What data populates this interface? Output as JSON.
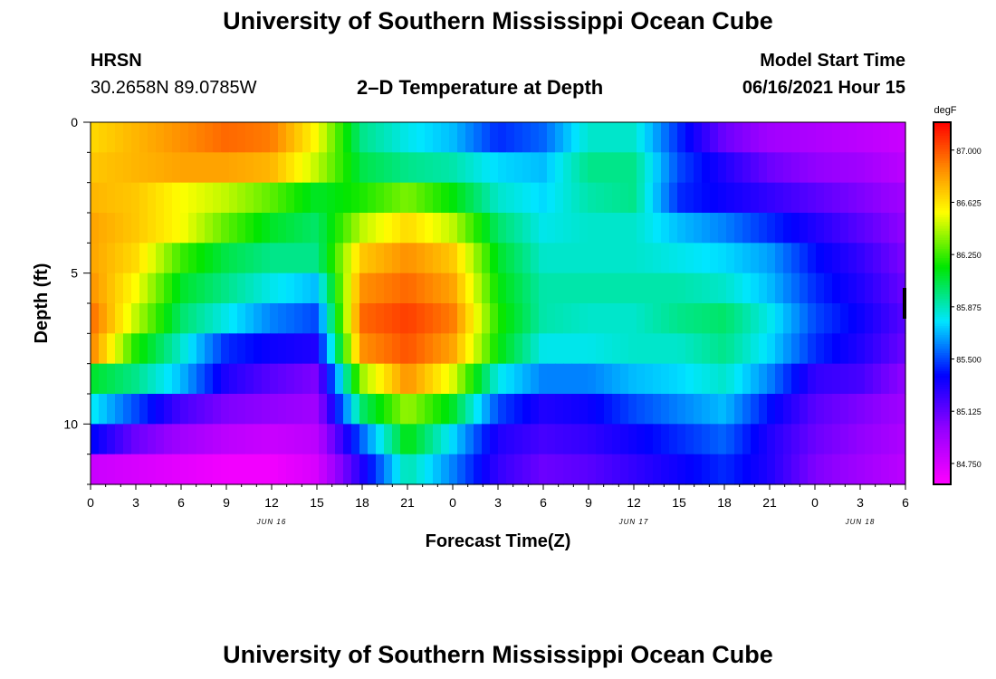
{
  "header": {
    "title": "University of Southern Mississippi Ocean Cube",
    "station": "HRSN",
    "coords": "30.2658N  89.0785W",
    "plot_title": "2–D Temperature at Depth",
    "model_label": "Model Start Time",
    "model_time": "06/16/2021 Hour 15"
  },
  "footer": {
    "title": "University of Southern Mississippi Ocean Cube"
  },
  "chart_data": {
    "type": "heatmap",
    "title": "2–D Temperature at Depth",
    "xlabel": "Forecast Time(Z)",
    "ylabel": "Depth (ft)",
    "x_tick_labels": [
      "0",
      "3",
      "6",
      "9",
      "12",
      "15",
      "18",
      "21",
      "0",
      "3",
      "6",
      "9",
      "12",
      "15",
      "18",
      "21",
      "0",
      "3",
      "6"
    ],
    "x_range_hours": [
      0,
      54
    ],
    "date_labels": [
      {
        "label": "JUN 16",
        "hour": 12
      },
      {
        "label": "JUN 17",
        "hour": 36
      },
      {
        "label": "JUN 18",
        "hour": 51
      }
    ],
    "y_ticks": [
      0,
      5,
      10
    ],
    "y_range": [
      0,
      12
    ],
    "y_inverted": true,
    "rows_depth_ft": [
      0.5,
      1.5,
      2.5,
      3.5,
      4.5,
      5.5,
      6.5,
      7.5,
      8.5,
      9.5,
      10.5,
      11.5
    ],
    "column_hours": [
      0,
      3,
      6,
      9,
      12,
      15,
      18,
      21,
      24,
      27,
      30,
      33,
      36,
      39,
      42,
      45,
      48,
      51,
      54
    ],
    "values": [
      [
        86.65,
        86.75,
        86.85,
        86.95,
        86.9,
        86.55,
        85.95,
        85.8,
        85.7,
        85.45,
        85.55,
        85.85,
        85.85,
        85.45,
        85.1,
        84.95,
        84.9,
        84.85,
        84.8
      ],
      [
        86.7,
        86.75,
        86.8,
        86.8,
        86.75,
        86.45,
        86.05,
        85.95,
        85.9,
        85.75,
        85.7,
        85.95,
        85.95,
        85.5,
        85.3,
        85.1,
        85.0,
        84.95,
        84.85
      ],
      [
        86.75,
        86.7,
        86.55,
        86.45,
        86.3,
        86.1,
        86.2,
        86.35,
        86.15,
        85.85,
        85.75,
        85.9,
        85.95,
        85.45,
        85.35,
        85.25,
        85.15,
        85.05,
        84.95
      ],
      [
        86.8,
        86.7,
        86.55,
        86.3,
        86.1,
        86.0,
        86.45,
        86.65,
        86.45,
        86.0,
        85.8,
        85.85,
        85.85,
        85.7,
        85.6,
        85.45,
        85.3,
        85.15,
        85.0
      ],
      [
        86.8,
        86.65,
        86.25,
        86.05,
        85.95,
        85.95,
        86.7,
        86.85,
        86.7,
        86.1,
        85.85,
        85.85,
        85.85,
        85.8,
        85.75,
        85.65,
        85.4,
        85.25,
        85.05
      ],
      [
        86.85,
        86.55,
        86.1,
        85.95,
        85.8,
        85.7,
        86.85,
        86.95,
        86.8,
        86.15,
        85.9,
        85.9,
        85.9,
        85.9,
        85.85,
        85.7,
        85.45,
        85.3,
        85.1
      ],
      [
        86.95,
        86.45,
        86.0,
        85.8,
        85.6,
        85.5,
        86.95,
        87.05,
        86.9,
        86.2,
        85.9,
        85.85,
        85.85,
        85.95,
        86.0,
        85.8,
        85.5,
        85.35,
        85.15
      ],
      [
        86.9,
        86.2,
        85.85,
        85.45,
        85.35,
        85.3,
        86.85,
        87.0,
        86.8,
        86.15,
        85.8,
        85.8,
        85.85,
        85.85,
        85.95,
        85.75,
        85.45,
        85.3,
        85.1
      ],
      [
        86.1,
        85.95,
        85.7,
        85.3,
        85.15,
        85.05,
        86.4,
        86.85,
        86.5,
        85.8,
        85.6,
        85.6,
        85.7,
        85.75,
        85.85,
        85.6,
        85.25,
        85.2,
        85.0
      ],
      [
        85.8,
        85.5,
        85.2,
        85.05,
        85.0,
        84.95,
        86.0,
        86.4,
        86.1,
        85.5,
        85.3,
        85.35,
        85.5,
        85.6,
        85.7,
        85.4,
        85.15,
        85.05,
        84.95
      ],
      [
        85.4,
        85.1,
        84.95,
        84.85,
        84.8,
        84.85,
        85.55,
        86.15,
        85.75,
        85.3,
        85.2,
        85.25,
        85.35,
        85.45,
        85.55,
        85.3,
        85.1,
        85.0,
        84.9
      ],
      [
        84.8,
        84.75,
        84.7,
        84.65,
        84.65,
        84.75,
        85.3,
        85.9,
        85.6,
        85.25,
        85.1,
        85.15,
        85.25,
        85.35,
        85.45,
        85.3,
        85.05,
        84.95,
        84.85
      ]
    ],
    "colorbar": {
      "unit": "degF",
      "labels": [
        "87.000",
        "86.625",
        "86.250",
        "85.875",
        "85.500",
        "85.125",
        "84.750"
      ],
      "min": 84.6,
      "max": 87.2
    }
  }
}
